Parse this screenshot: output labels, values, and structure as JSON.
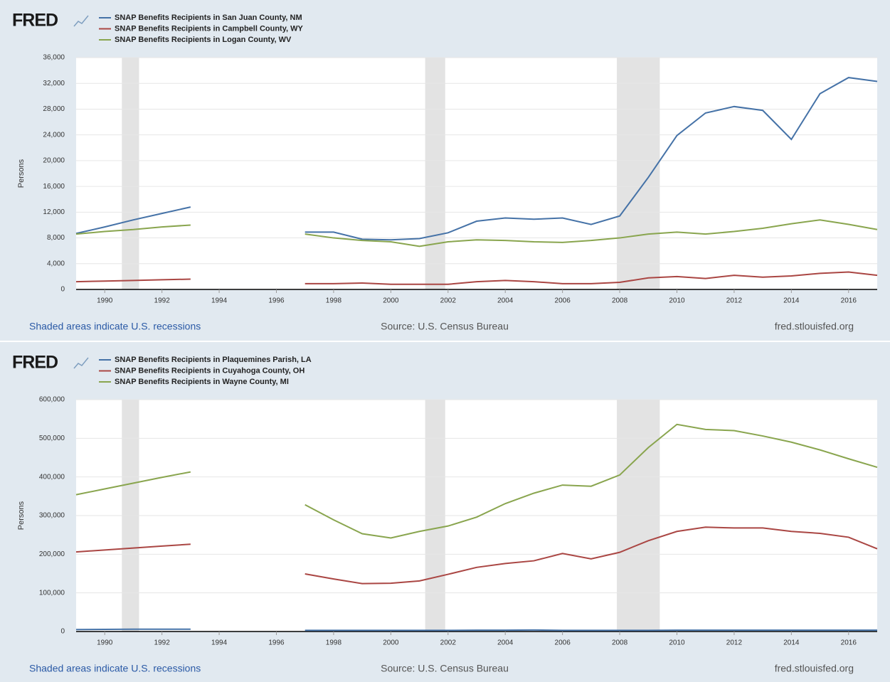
{
  "chart_data": [
    {
      "type": "line",
      "logo": "FRED",
      "ylabel": "Persons",
      "note": "Shaded areas indicate U.S. recessions",
      "source": "Source: U.S. Census Bureau",
      "site": "fred.stlouisfed.org",
      "x": [
        1989,
        1990,
        1991,
        1992,
        1993,
        1994,
        1995,
        1996,
        1997,
        1998,
        1999,
        2000,
        2001,
        2002,
        2003,
        2004,
        2005,
        2006,
        2007,
        2008,
        2009,
        2010,
        2011,
        2012,
        2013,
        2014,
        2015,
        2016,
        2017
      ],
      "series": [
        {
          "name": "SNAP Benefits Recipients in San Juan County, NM",
          "color": "#4572a7",
          "values": [
            8700,
            9700,
            10800,
            11800,
            12800,
            null,
            null,
            null,
            8900,
            8900,
            7800,
            7700,
            7900,
            8800,
            10600,
            11100,
            10900,
            11100,
            10100,
            11400,
            17400,
            23900,
            27400,
            28400,
            27800,
            23300,
            30400,
            32900,
            32300
          ]
        },
        {
          "name": "SNAP Benefits Recipients in Campbell County, WY",
          "color": "#aa4643",
          "values": [
            1200,
            1300,
            1400,
            1500,
            1600,
            null,
            null,
            null,
            900,
            900,
            1000,
            800,
            800,
            800,
            1200,
            1400,
            1200,
            900,
            900,
            1100,
            1800,
            2000,
            1700,
            2200,
            1900,
            2100,
            2500,
            2700,
            2200
          ]
        },
        {
          "name": "SNAP Benefits Recipients in Logan County, WV",
          "color": "#89a54e",
          "values": [
            8600,
            9000,
            9300,
            9700,
            10000,
            null,
            null,
            null,
            8600,
            8000,
            7600,
            7400,
            6700,
            7400,
            7700,
            7600,
            7400,
            7300,
            7600,
            8000,
            8600,
            8900,
            8600,
            9000,
            9500,
            10200,
            10800,
            10100,
            9300
          ]
        }
      ],
      "recessions": [
        [
          1990.6,
          1991.2
        ],
        [
          2001.2,
          2001.9
        ],
        [
          2007.9,
          2009.4
        ]
      ],
      "xlim": [
        1989,
        2017
      ],
      "xticks": [
        1990,
        1992,
        1994,
        1996,
        1998,
        2000,
        2002,
        2004,
        2006,
        2008,
        2010,
        2012,
        2014,
        2016
      ],
      "ylim": [
        0,
        36000
      ],
      "yticks": [
        0,
        {
          "value": 4000,
          "label": "4,000"
        },
        {
          "value": 8000,
          "label": "8,000"
        },
        {
          "value": 12000,
          "label": "12,000"
        },
        {
          "value": 16000,
          "label": "16,000"
        },
        {
          "value": 20000,
          "label": "20,000"
        },
        {
          "value": 24000,
          "label": "24,000"
        },
        {
          "value": 28000,
          "label": "28,000"
        },
        {
          "value": 32000,
          "label": "32,000"
        },
        {
          "value": 36000,
          "label": "36,000"
        }
      ],
      "grid": true
    },
    {
      "type": "line",
      "logo": "FRED",
      "ylabel": "Persons",
      "note": "Shaded areas indicate U.S. recessions",
      "source": "Source: U.S. Census Bureau",
      "site": "fred.stlouisfed.org",
      "x": [
        1989,
        1990,
        1991,
        1992,
        1993,
        1994,
        1995,
        1996,
        1997,
        1998,
        1999,
        2000,
        2001,
        2002,
        2003,
        2004,
        2005,
        2006,
        2007,
        2008,
        2009,
        2010,
        2011,
        2012,
        2013,
        2014,
        2015,
        2016,
        2017
      ],
      "series": [
        {
          "name": "SNAP Benefits Recipients in Plaquemines Parish, LA",
          "color": "#4572a7",
          "values": [
            5000,
            5500,
            6000,
            6000,
            6000,
            null,
            null,
            null,
            3000,
            3000,
            3000,
            3000,
            3000,
            3000,
            3500,
            3500,
            4000,
            3000,
            3000,
            3000,
            3000,
            3500,
            3500,
            3500,
            3500,
            3500,
            3500,
            3500,
            3500
          ]
        },
        {
          "name": "SNAP Benefits Recipients in Cuyahoga County, OH",
          "color": "#aa4643",
          "values": [
            206000,
            211000,
            216000,
            221000,
            226000,
            null,
            null,
            null,
            149000,
            136000,
            124000,
            125000,
            131000,
            148000,
            166000,
            176000,
            183000,
            202000,
            188000,
            205000,
            235000,
            259000,
            270000,
            268000,
            268000,
            259000,
            254000,
            244000,
            214000
          ]
        },
        {
          "name": "SNAP Benefits Recipients in Wayne County, MI",
          "color": "#89a54e",
          "values": [
            354000,
            369000,
            384000,
            399000,
            413000,
            null,
            null,
            null,
            328000,
            289000,
            253000,
            242000,
            259000,
            273000,
            296000,
            331000,
            358000,
            379000,
            376000,
            405000,
            476000,
            536000,
            523000,
            520000,
            506000,
            490000,
            470000,
            447000,
            425000
          ]
        }
      ],
      "recessions": [
        [
          1990.6,
          1991.2
        ],
        [
          2001.2,
          2001.9
        ],
        [
          2007.9,
          2009.4
        ]
      ],
      "xlim": [
        1989,
        2017
      ],
      "xticks": [
        1990,
        1992,
        1994,
        1996,
        1998,
        2000,
        2002,
        2004,
        2006,
        2008,
        2010,
        2012,
        2014,
        2016
      ],
      "ylim": [
        0,
        600000
      ],
      "yticks": [
        0,
        {
          "value": 100000,
          "label": "100,000"
        },
        {
          "value": 200000,
          "label": "200,000"
        },
        {
          "value": 300000,
          "label": "300,000"
        },
        {
          "value": 400000,
          "label": "400,000"
        },
        {
          "value": 500000,
          "label": "500,000"
        },
        {
          "value": 600000,
          "label": "600,000"
        }
      ],
      "grid": true
    }
  ]
}
